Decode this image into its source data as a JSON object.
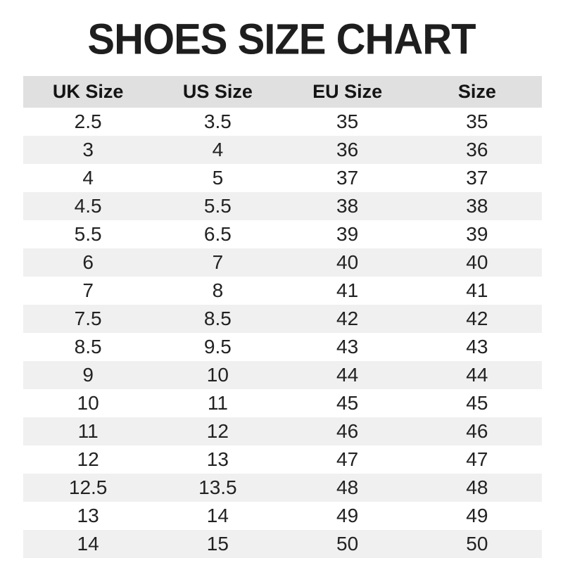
{
  "title": "SHOES SIZE CHART",
  "colors": {
    "background": "#ffffff",
    "header_bg": "#e0e0e0",
    "row_alt_bg": "#f0f0f1",
    "title_text": "#1e1e1e",
    "cell_text": "#222222"
  },
  "chart_data": {
    "type": "table",
    "title": "SHOES SIZE CHART",
    "columns": [
      "UK Size",
      "US Size",
      "EU Size",
      "Size"
    ],
    "rows": [
      [
        "2.5",
        "3.5",
        "35",
        "35"
      ],
      [
        "3",
        "4",
        "36",
        "36"
      ],
      [
        "4",
        "5",
        "37",
        "37"
      ],
      [
        "4.5",
        "5.5",
        "38",
        "38"
      ],
      [
        "5.5",
        "6.5",
        "39",
        "39"
      ],
      [
        "6",
        "7",
        "40",
        "40"
      ],
      [
        "7",
        "8",
        "41",
        "41"
      ],
      [
        "7.5",
        "8.5",
        "42",
        "42"
      ],
      [
        "8.5",
        "9.5",
        "43",
        "43"
      ],
      [
        "9",
        "10",
        "44",
        "44"
      ],
      [
        "10",
        "11",
        "45",
        "45"
      ],
      [
        "11",
        "12",
        "46",
        "46"
      ],
      [
        "12",
        "13",
        "47",
        "47"
      ],
      [
        "12.5",
        "13.5",
        "48",
        "48"
      ],
      [
        "13",
        "14",
        "49",
        "49"
      ],
      [
        "14",
        "15",
        "50",
        "50"
      ]
    ],
    "layout": {
      "zebra_striping": true,
      "gridlines": false,
      "header_row": true
    }
  }
}
